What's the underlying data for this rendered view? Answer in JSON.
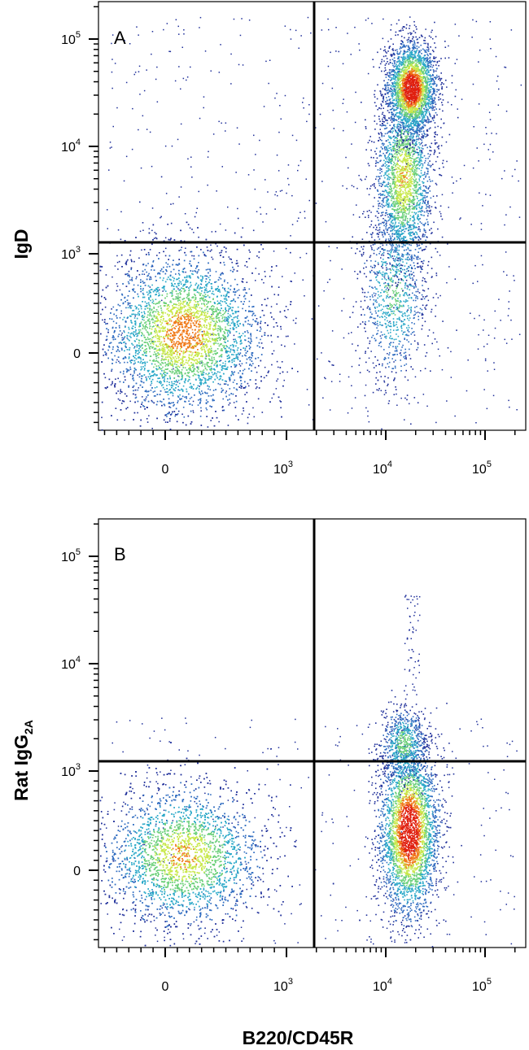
{
  "chart_data": [
    {
      "type": "scatter",
      "panel_label": "A",
      "xlabel": "",
      "ylabel": "IgD",
      "x_ticks": [
        {
          "base": "0",
          "exp": ""
        },
        {
          "base": "10",
          "exp": "3"
        },
        {
          "base": "10",
          "exp": "4"
        },
        {
          "base": "10",
          "exp": "5"
        }
      ],
      "y_ticks": [
        {
          "base": "0",
          "exp": ""
        },
        {
          "base": "10",
          "exp": "3"
        },
        {
          "base": "10",
          "exp": "4"
        },
        {
          "base": "10",
          "exp": "5"
        }
      ],
      "x_scale": "biexponential",
      "y_scale": "biexponential",
      "gate": {
        "x": 2000,
        "y": 1200
      },
      "populations": [
        {
          "name": "B220- IgD-",
          "center": [
            150,
            200
          ],
          "spread": "broad",
          "peak_density": "medium"
        },
        {
          "name": "B220+ IgD+",
          "center": [
            18000,
            35000
          ],
          "spread": "vertical streak",
          "peak_density": "high"
        },
        {
          "name": "B220+ IgD-",
          "center": [
            12000,
            500
          ],
          "spread": "sparse",
          "peak_density": "low"
        }
      ]
    },
    {
      "type": "scatter",
      "panel_label": "B",
      "xlabel": "B220/CD45R",
      "ylabel": "Rat IgG",
      "ylabel_sub": "2A",
      "x_ticks": [
        {
          "base": "0",
          "exp": ""
        },
        {
          "base": "10",
          "exp": "3"
        },
        {
          "base": "10",
          "exp": "4"
        },
        {
          "base": "10",
          "exp": "5"
        }
      ],
      "y_ticks": [
        {
          "base": "0",
          "exp": ""
        },
        {
          "base": "10",
          "exp": "3"
        },
        {
          "base": "10",
          "exp": "4"
        },
        {
          "base": "10",
          "exp": "5"
        }
      ],
      "x_scale": "biexponential",
      "y_scale": "biexponential",
      "gate": {
        "x": 2000,
        "y": 1200
      },
      "populations": [
        {
          "name": "B220- isotype",
          "center": [
            150,
            150
          ],
          "spread": "broad",
          "peak_density": "medium"
        },
        {
          "name": "B220+ isotype",
          "center": [
            17000,
            400
          ],
          "spread": "vertical",
          "peak_density": "high"
        }
      ]
    }
  ],
  "colors": {
    "low": "#1f2f9a",
    "mid": "#2aa8c8",
    "mid2": "#c8e84a",
    "high": "#e02010",
    "axis": "#000000"
  }
}
